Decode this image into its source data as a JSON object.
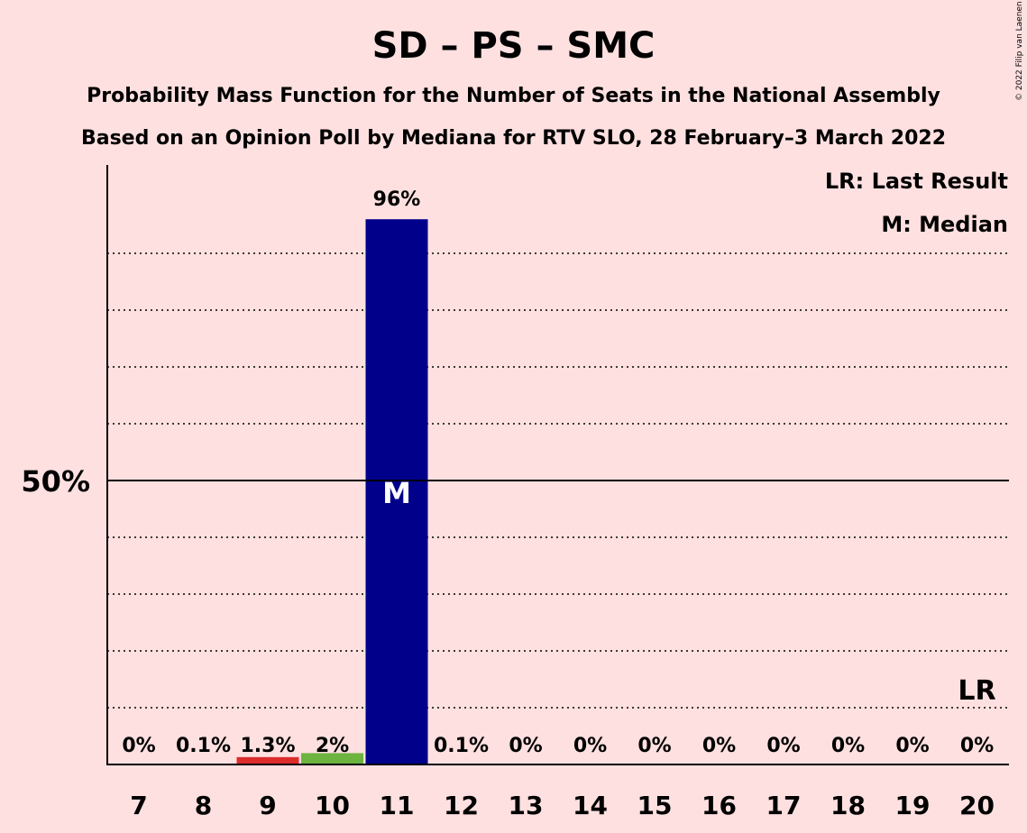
{
  "title": "SD – PS – SMC",
  "subtitle1": "Probability Mass Function for the Number of Seats in the National Assembly",
  "subtitle2": "Based on an Opinion Poll by Mediana for RTV SLO, 28 February–3 March 2022",
  "copyright": "© 2022 Filip van Laenen",
  "legend": {
    "last_result": "LR: Last Result",
    "median": "M: Median"
  },
  "colors": {
    "background": "#ffe0e0",
    "bar_default": "#00008b",
    "bar_9": "#dd2c2c",
    "bar_10": "#6db33f"
  },
  "chart_data": {
    "type": "bar",
    "categories": [
      "7",
      "8",
      "9",
      "10",
      "11",
      "12",
      "13",
      "14",
      "15",
      "16",
      "17",
      "18",
      "19",
      "20"
    ],
    "values": [
      0,
      0.1,
      1.3,
      2,
      96,
      0.1,
      0,
      0,
      0,
      0,
      0,
      0,
      0,
      0
    ],
    "value_labels": [
      "0%",
      "0.1%",
      "1.3%",
      "2%",
      "96%",
      "0.1%",
      "0%",
      "0%",
      "0%",
      "0%",
      "0%",
      "0%",
      "0%",
      "0%"
    ],
    "bar_colors": [
      "#00008b",
      "#00008b",
      "#dd2c2c",
      "#6db33f",
      "#00008b",
      "#00008b",
      "#00008b",
      "#00008b",
      "#00008b",
      "#00008b",
      "#00008b",
      "#00008b",
      "#00008b",
      "#00008b"
    ],
    "ylim": [
      0,
      100
    ],
    "y_tick_label": "50%",
    "y_tick_value": 50,
    "gridlines": [
      10,
      20,
      30,
      40,
      60,
      70,
      80,
      90
    ],
    "median_category": "11",
    "median_marker": "M",
    "last_result_category": "20",
    "last_result_marker": "LR",
    "xlabel": "",
    "ylabel": ""
  }
}
